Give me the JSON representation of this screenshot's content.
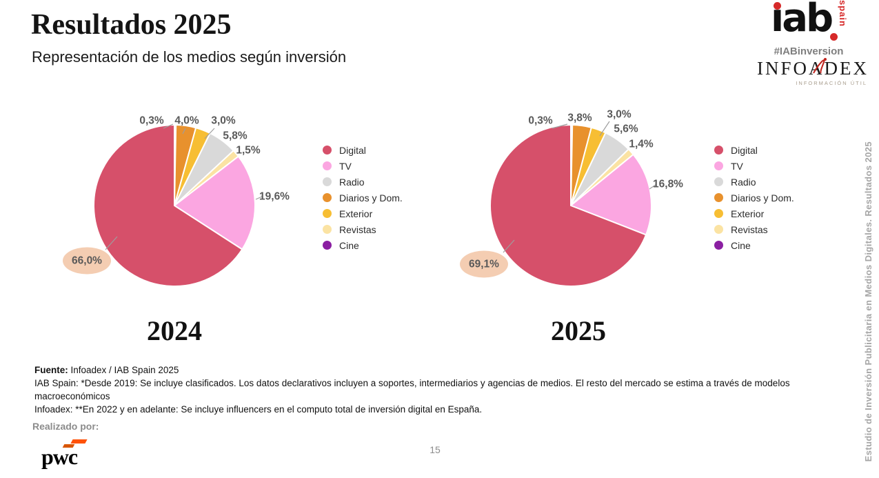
{
  "slide": {
    "title": "Resultados 2025",
    "subtitle": "Representación de los medios según inversión",
    "page_number": "15",
    "vertical_sidebar_text": "Estudio de Inversión Publicitaria en Medios Digitales. Resultados 2025"
  },
  "branding": {
    "iab_logo_text": "ıab",
    "iab_logo_spain": "spain",
    "iab_hashtag": "#IABinversion",
    "infoadex_logo_text": "INFOADEX",
    "infoadex_tagline": "INFORMACIÓN ÚTIL",
    "pwc_logo_text": "pwc",
    "realizado_por_label": "Realizado por:"
  },
  "footnotes": {
    "fuente_label": "Fuente:",
    "fuente_text": " Infoadex / IAB Spain 2025",
    "note_iab": "IAB Spain: *Desde 2019: Se incluye clasificados. Los datos declarativos incluyen a soportes, intermediarios y agencias de medios. El resto del mercado se estima a través de modelos macroeconómicos",
    "note_infoadex": "Infoadex: **En 2022 y en adelante: Se incluye influencers en el computo total de inversión digital en España."
  },
  "legend": {
    "position": "right",
    "items": [
      {
        "label": "Digital",
        "color": "#D6506A"
      },
      {
        "label": "TV",
        "color": "#FBA6E1"
      },
      {
        "label": "Radio",
        "color": "#D9D9D9"
      },
      {
        "label": "Diarios y Dom.",
        "color": "#E8912D"
      },
      {
        "label": "Exterior",
        "color": "#F7BE33"
      },
      {
        "label": "Revistas",
        "color": "#FBE3A3"
      },
      {
        "label": "Cine",
        "color": "#8B1FA2"
      }
    ]
  },
  "styles": {
    "callout_fill": "#F4CDB2",
    "label_color": "#595959",
    "leader_color": "#9E9E9E"
  },
  "chart_data": [
    {
      "type": "pie",
      "title": "2024",
      "categories": [
        "Digital",
        "TV",
        "Radio",
        "Diarios y Dom.",
        "Exterior",
        "Revistas",
        "Cine"
      ],
      "values": [
        66.0,
        19.6,
        5.8,
        4.0,
        3.0,
        1.5,
        0.3
      ],
      "labels": [
        "66,0%",
        "19,6%",
        "5,8%",
        "4,0%",
        "3,0%",
        "1,5%",
        "0,3%"
      ],
      "callout_category": "Digital",
      "legend_position": "right"
    },
    {
      "type": "pie",
      "title": "2025",
      "categories": [
        "Digital",
        "TV",
        "Radio",
        "Diarios y Dom.",
        "Exterior",
        "Revistas",
        "Cine"
      ],
      "values": [
        69.1,
        16.8,
        5.6,
        3.8,
        3.0,
        1.4,
        0.3
      ],
      "labels": [
        "69,1%",
        "16,8%",
        "5,6%",
        "3,8%",
        "3,0%",
        "1,4%",
        "0,3%"
      ],
      "callout_category": "Digital",
      "legend_position": "right"
    }
  ]
}
